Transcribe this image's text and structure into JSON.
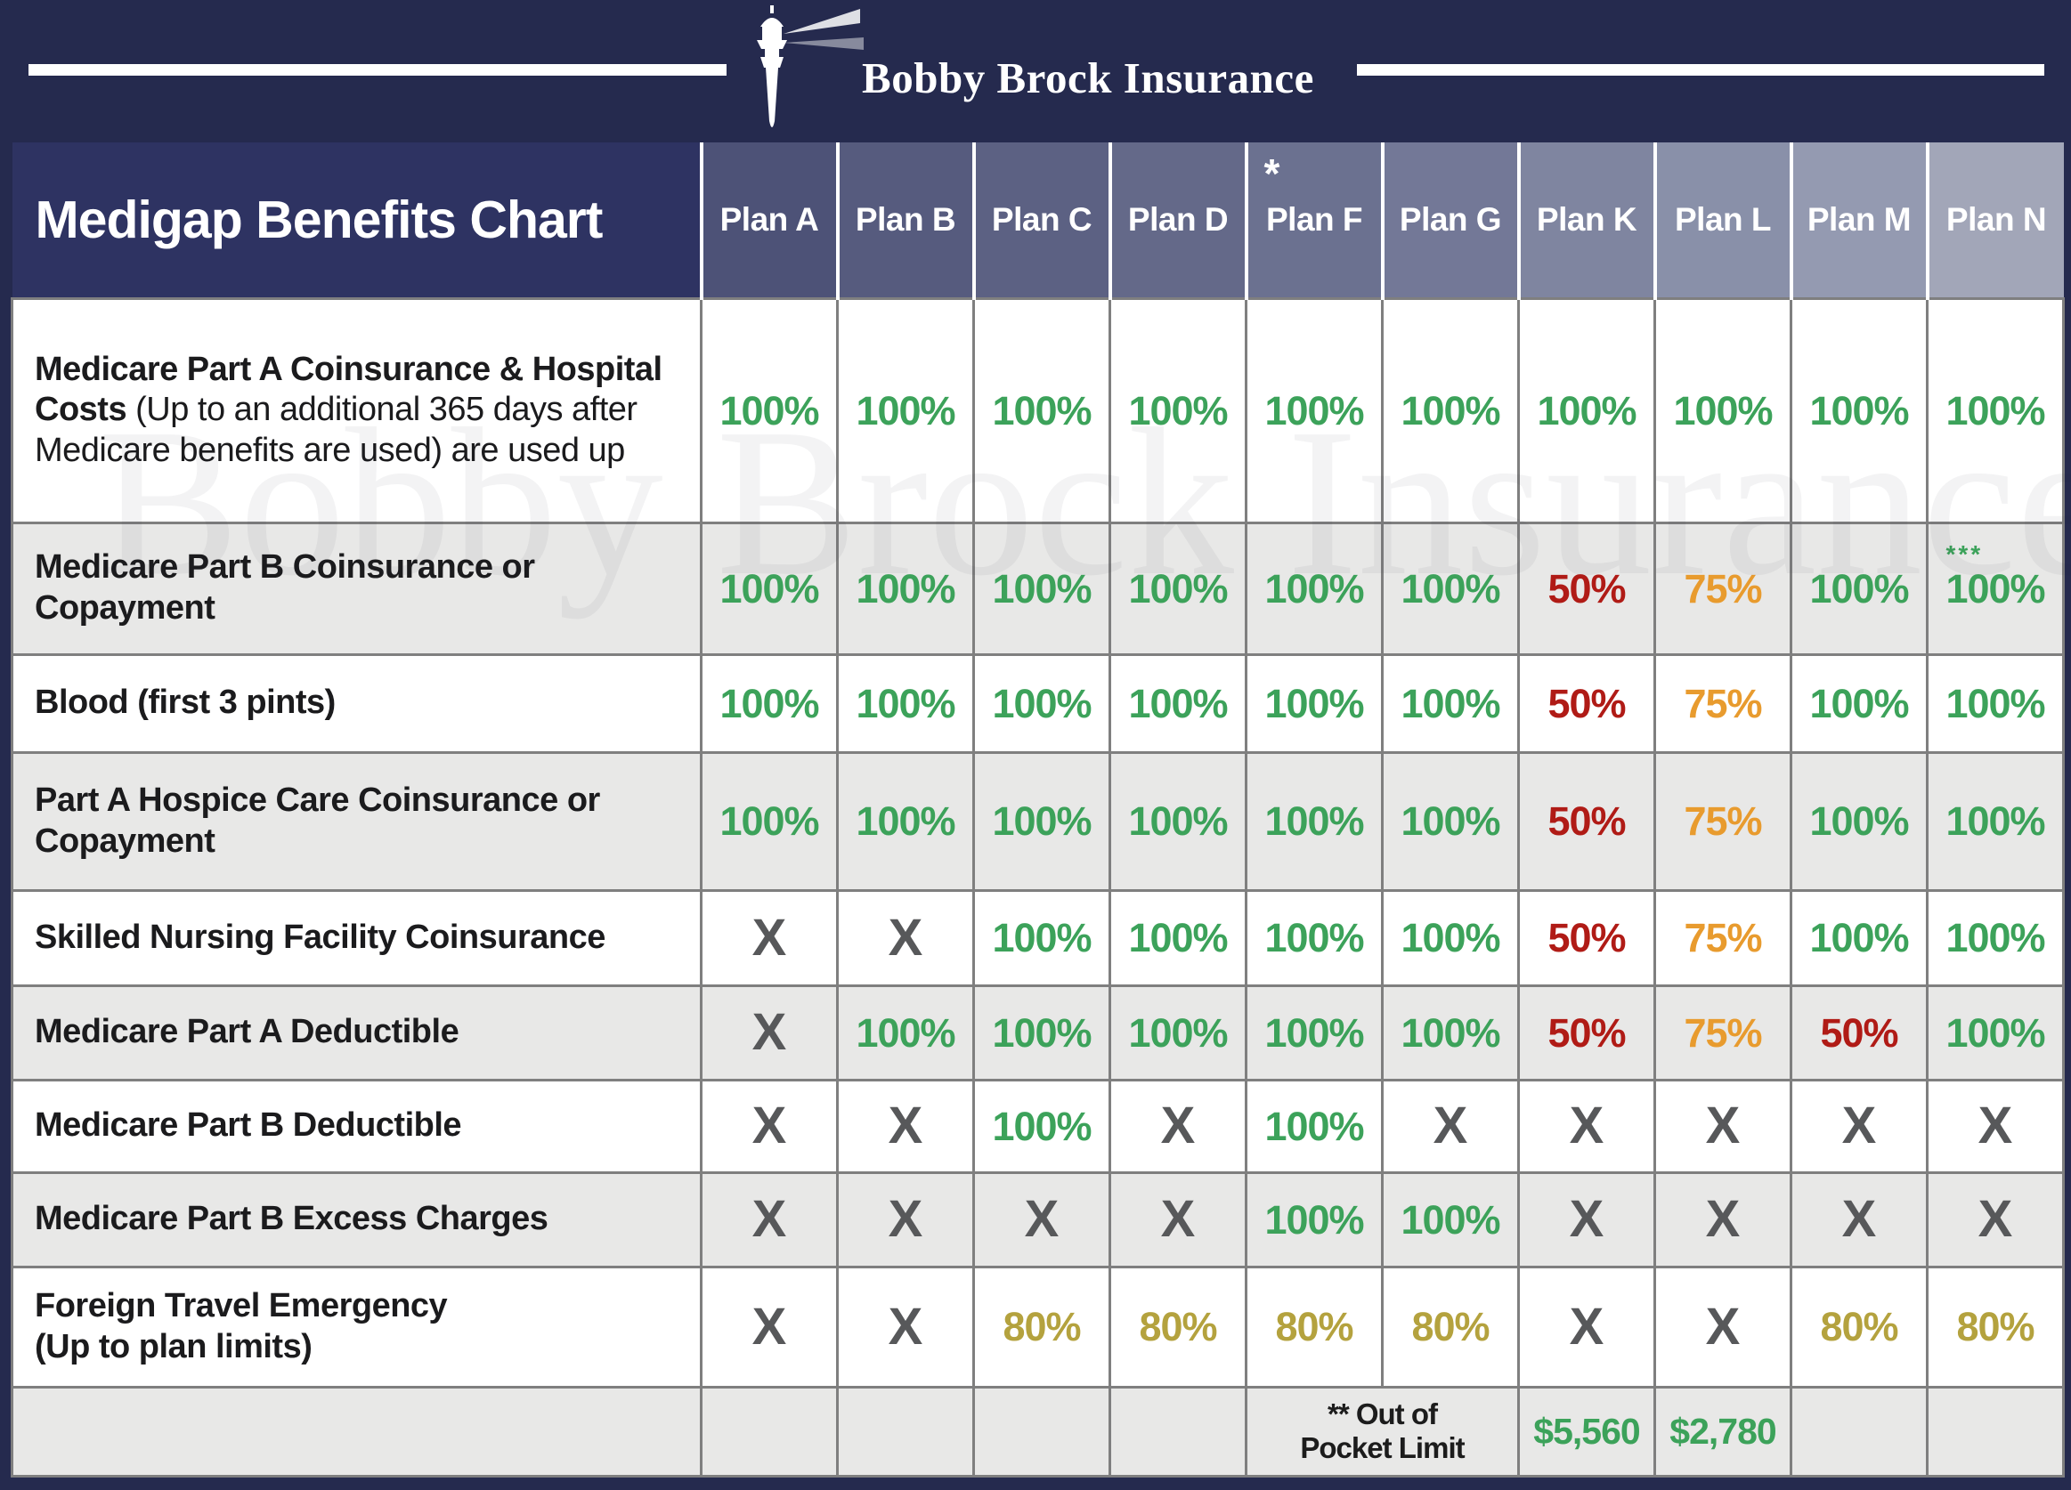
{
  "brand": {
    "name": "Bobby Brock Insurance"
  },
  "header": {
    "title": "Medigap Benefits Chart"
  },
  "watermark": "Bobby Brock Insurance",
  "colors": {
    "navy": "#252A4E",
    "title_cell_navy": "#2E3362",
    "green": "#3CA25A",
    "red": "#B01B16",
    "orange": "#E89B2E",
    "gold": "#B4A23E",
    "x_gray": "#57585A",
    "row_gray": "#E8E8E7",
    "row_white": "#FFFFFF",
    "grid_line": "#7F7F7F",
    "header_columns": [
      "#4D5277",
      "#565B7E",
      "#5C6183",
      "#646989",
      "#6B7190",
      "#737897",
      "#7F85A0",
      "#8990A9",
      "#949AB1",
      "#A2A6B8"
    ]
  },
  "chart_data": {
    "type": "table",
    "title": "Medigap Benefits Chart",
    "columns": [
      {
        "label": "Plan A"
      },
      {
        "label": "Plan B"
      },
      {
        "label": "Plan C"
      },
      {
        "label": "Plan D"
      },
      {
        "label": "Plan F",
        "mark": "*"
      },
      {
        "label": "Plan G"
      },
      {
        "label": "Plan K"
      },
      {
        "label": "Plan L"
      },
      {
        "label": "Plan M"
      },
      {
        "label": "Plan N"
      }
    ],
    "rows": [
      {
        "shade": "white",
        "label": {
          "bold": "Medicare Part A Coinsurance & Hospital Costs",
          "normal": "(Up to an additional 365 days after Medicare benefits are used) are used up"
        },
        "values": [
          {
            "t": "100%",
            "c": "green"
          },
          {
            "t": "100%",
            "c": "green"
          },
          {
            "t": "100%",
            "c": "green"
          },
          {
            "t": "100%",
            "c": "green"
          },
          {
            "t": "100%",
            "c": "green"
          },
          {
            "t": "100%",
            "c": "green"
          },
          {
            "t": "100%",
            "c": "green"
          },
          {
            "t": "100%",
            "c": "green"
          },
          {
            "t": "100%",
            "c": "green"
          },
          {
            "t": "100%",
            "c": "green"
          }
        ]
      },
      {
        "shade": "gray",
        "label": {
          "bold": "Medicare Part B Coinsurance or Copayment"
        },
        "values": [
          {
            "t": "100%",
            "c": "green"
          },
          {
            "t": "100%",
            "c": "green"
          },
          {
            "t": "100%",
            "c": "green"
          },
          {
            "t": "100%",
            "c": "green"
          },
          {
            "t": "100%",
            "c": "green"
          },
          {
            "t": "100%",
            "c": "green"
          },
          {
            "t": "50%",
            "c": "red"
          },
          {
            "t": "75%",
            "c": "orange"
          },
          {
            "t": "100%",
            "c": "green"
          },
          {
            "t": "100%",
            "c": "green",
            "sup": "***"
          }
        ]
      },
      {
        "shade": "white",
        "label": {
          "bold": "Blood (first 3 pints)"
        },
        "values": [
          {
            "t": "100%",
            "c": "green"
          },
          {
            "t": "100%",
            "c": "green"
          },
          {
            "t": "100%",
            "c": "green"
          },
          {
            "t": "100%",
            "c": "green"
          },
          {
            "t": "100%",
            "c": "green"
          },
          {
            "t": "100%",
            "c": "green"
          },
          {
            "t": "50%",
            "c": "red"
          },
          {
            "t": "75%",
            "c": "orange"
          },
          {
            "t": "100%",
            "c": "green"
          },
          {
            "t": "100%",
            "c": "green"
          }
        ]
      },
      {
        "shade": "gray",
        "label": {
          "bold": "Part A Hospice Care Coinsurance or Copayment"
        },
        "values": [
          {
            "t": "100%",
            "c": "green"
          },
          {
            "t": "100%",
            "c": "green"
          },
          {
            "t": "100%",
            "c": "green"
          },
          {
            "t": "100%",
            "c": "green"
          },
          {
            "t": "100%",
            "c": "green"
          },
          {
            "t": "100%",
            "c": "green"
          },
          {
            "t": "50%",
            "c": "red"
          },
          {
            "t": "75%",
            "c": "orange"
          },
          {
            "t": "100%",
            "c": "green"
          },
          {
            "t": "100%",
            "c": "green"
          }
        ]
      },
      {
        "shade": "white",
        "label": {
          "bold": "Skilled Nursing Facility Coinsurance"
        },
        "values": [
          {
            "t": "X",
            "c": "x"
          },
          {
            "t": "X",
            "c": "x"
          },
          {
            "t": "100%",
            "c": "green"
          },
          {
            "t": "100%",
            "c": "green"
          },
          {
            "t": "100%",
            "c": "green"
          },
          {
            "t": "100%",
            "c": "green"
          },
          {
            "t": "50%",
            "c": "red"
          },
          {
            "t": "75%",
            "c": "orange"
          },
          {
            "t": "100%",
            "c": "green"
          },
          {
            "t": "100%",
            "c": "green"
          }
        ]
      },
      {
        "shade": "gray",
        "label": {
          "bold": "Medicare Part A Deductible"
        },
        "values": [
          {
            "t": "X",
            "c": "x"
          },
          {
            "t": "100%",
            "c": "green"
          },
          {
            "t": "100%",
            "c": "green"
          },
          {
            "t": "100%",
            "c": "green"
          },
          {
            "t": "100%",
            "c": "green"
          },
          {
            "t": "100%",
            "c": "green"
          },
          {
            "t": "50%",
            "c": "red"
          },
          {
            "t": "75%",
            "c": "orange"
          },
          {
            "t": "50%",
            "c": "red"
          },
          {
            "t": "100%",
            "c": "green"
          }
        ]
      },
      {
        "shade": "white",
        "label": {
          "bold": "Medicare Part B Deductible"
        },
        "values": [
          {
            "t": "X",
            "c": "x"
          },
          {
            "t": "X",
            "c": "x"
          },
          {
            "t": "100%",
            "c": "green"
          },
          {
            "t": "X",
            "c": "x"
          },
          {
            "t": "100%",
            "c": "green"
          },
          {
            "t": "X",
            "c": "x"
          },
          {
            "t": "X",
            "c": "x"
          },
          {
            "t": "X",
            "c": "x"
          },
          {
            "t": "X",
            "c": "x"
          },
          {
            "t": "X",
            "c": "x"
          }
        ]
      },
      {
        "shade": "gray",
        "label": {
          "bold": "Medicare Part B Excess Charges"
        },
        "values": [
          {
            "t": "X",
            "c": "x"
          },
          {
            "t": "X",
            "c": "x"
          },
          {
            "t": "X",
            "c": "x"
          },
          {
            "t": "X",
            "c": "x"
          },
          {
            "t": "100%",
            "c": "green"
          },
          {
            "t": "100%",
            "c": "green"
          },
          {
            "t": "X",
            "c": "x"
          },
          {
            "t": "X",
            "c": "x"
          },
          {
            "t": "X",
            "c": "x"
          },
          {
            "t": "X",
            "c": "x"
          }
        ]
      },
      {
        "shade": "white",
        "label": {
          "bold": "Foreign Travel Emergency",
          "line2": "(Up to plan limits)"
        },
        "values": [
          {
            "t": "X",
            "c": "x"
          },
          {
            "t": "X",
            "c": "x"
          },
          {
            "t": "80%",
            "c": "gold"
          },
          {
            "t": "80%",
            "c": "gold"
          },
          {
            "t": "80%",
            "c": "gold"
          },
          {
            "t": "80%",
            "c": "gold"
          },
          {
            "t": "X",
            "c": "x"
          },
          {
            "t": "X",
            "c": "x"
          },
          {
            "t": "80%",
            "c": "gold"
          },
          {
            "t": "80%",
            "c": "gold"
          }
        ]
      }
    ],
    "footer": {
      "shade": "gray",
      "cells": [
        {
          "t": "",
          "c": "none",
          "span": 1
        },
        {
          "t": "",
          "c": "none",
          "span": 1
        },
        {
          "t": "",
          "c": "none",
          "span": 1
        },
        {
          "t": "",
          "c": "none",
          "span": 1
        },
        {
          "lines": [
            "** Out of",
            "Pocket Limit"
          ],
          "c": "black",
          "span": 2
        },
        {
          "t": "$5,560",
          "c": "green",
          "span": 1
        },
        {
          "t": "$2,780",
          "c": "green",
          "span": 1
        },
        {
          "t": "",
          "c": "none",
          "span": 1
        },
        {
          "t": "",
          "c": "none",
          "span": 1
        }
      ]
    }
  }
}
